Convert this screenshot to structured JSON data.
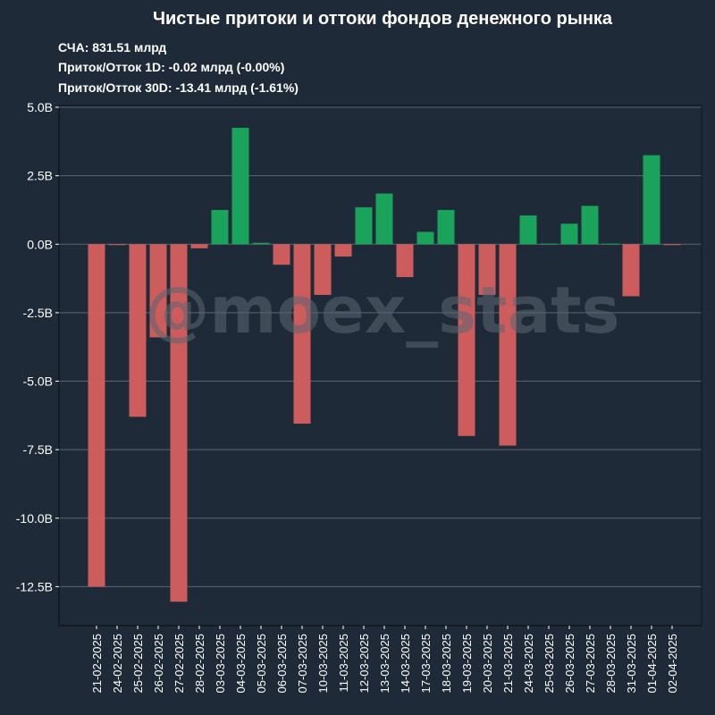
{
  "title": "Чистые притоки и оттоки фондов денежного рынка",
  "stats": [
    "СЧА: 831.51 млрд",
    "Приток/Отток 1D: -0.02 млрд (-0.00%)",
    "Приток/Отток 30D: -13.41 млрд (-1.61%)"
  ],
  "watermark": "@moex_stats",
  "colors": {
    "background": "#1f2a38",
    "positive": "#1aa35a",
    "negative": "#cd5c5c",
    "grid": "#5a6472",
    "axis": "#0e141c",
    "text": "#ffffff"
  },
  "chart_data": {
    "type": "bar",
    "title": "Чистые притоки и оттоки фондов денежного рынка",
    "xlabel": "",
    "ylabel": "",
    "ylim": [
      -14,
      5
    ],
    "yticks": [
      5,
      2.5,
      0,
      -2.5,
      -5,
      -7.5,
      -10,
      -12.5
    ],
    "ytick_labels": [
      "5.0B",
      "2.5B",
      "0.0B",
      "-2.5B",
      "-5.0B",
      "-7.5B",
      "-10.0B",
      "-12.5B"
    ],
    "grid": true,
    "categories": [
      "21-02-2025",
      "24-02-2025",
      "25-02-2025",
      "26-02-2025",
      "27-02-2025",
      "28-02-2025",
      "03-03-2025",
      "04-03-2025",
      "05-03-2025",
      "06-03-2025",
      "07-03-2025",
      "10-03-2025",
      "11-03-2025",
      "12-03-2025",
      "13-03-2025",
      "14-03-2025",
      "17-03-2025",
      "18-03-2025",
      "19-03-2025",
      "20-03-2025",
      "21-03-2025",
      "24-03-2025",
      "25-03-2025",
      "26-03-2025",
      "27-03-2025",
      "28-03-2025",
      "31-03-2025",
      "01-04-2025",
      "02-04-2025"
    ],
    "values": [
      -12.5,
      -0.02,
      -6.3,
      -3.4,
      -13.05,
      -0.15,
      1.25,
      4.25,
      0.05,
      -0.75,
      -6.55,
      -1.85,
      -0.45,
      1.35,
      1.85,
      -1.2,
      0.45,
      1.25,
      -7.0,
      -1.85,
      -7.35,
      1.05,
      0.02,
      0.75,
      1.4,
      0.02,
      -1.9,
      3.25,
      -0.02
    ]
  }
}
